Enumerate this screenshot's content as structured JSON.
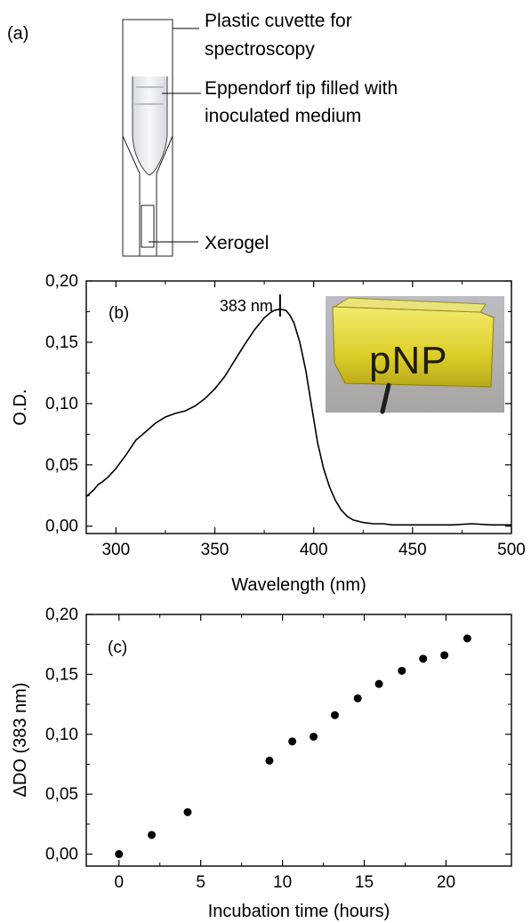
{
  "panel_a": {
    "label": "(a)",
    "callouts": {
      "cuvette_line1": "Plastic cuvette for",
      "cuvette_line2": "spectroscopy",
      "tip_line1": "Eppendorf tip filled with",
      "tip_line2": "inoculated medium",
      "xerogel": "Xerogel"
    }
  },
  "chart_data": [
    {
      "type": "line",
      "panel_label": "(b)",
      "xlabel": "Wavelength (nm)",
      "ylabel": "O.D.",
      "xlim": [
        285,
        500
      ],
      "ylim": [
        -0.006,
        0.2
      ],
      "x_ticks": [
        300,
        350,
        400,
        450,
        500
      ],
      "x_tick_labels": [
        "300",
        "350",
        "400",
        "450",
        "500"
      ],
      "y_ticks": [
        0,
        0.05,
        0.1,
        0.15,
        0.2
      ],
      "y_tick_labels": [
        "0,00",
        "0,05",
        "0,10",
        "0,15",
        "0,20"
      ],
      "annotation": {
        "text": "383 nm",
        "x": 383
      },
      "inset_photo_text": "pNP",
      "series": [
        {
          "x": [
            285,
            287,
            289,
            291,
            293,
            296,
            300,
            305,
            310,
            315,
            320,
            325,
            330,
            335,
            340,
            345,
            350,
            355,
            360,
            365,
            370,
            375,
            378,
            380,
            383,
            386,
            388,
            390,
            393,
            396,
            399,
            402,
            405,
            408,
            411,
            414,
            417,
            420,
            425,
            430,
            435,
            440,
            450,
            460,
            470,
            480,
            490,
            500
          ],
          "y": [
            0.024,
            0.027,
            0.03,
            0.034,
            0.036,
            0.04,
            0.047,
            0.058,
            0.07,
            0.077,
            0.084,
            0.089,
            0.092,
            0.094,
            0.098,
            0.104,
            0.112,
            0.122,
            0.135,
            0.148,
            0.16,
            0.17,
            0.174,
            0.176,
            0.177,
            0.176,
            0.172,
            0.166,
            0.15,
            0.127,
            0.097,
            0.068,
            0.047,
            0.032,
            0.021,
            0.013,
            0.008,
            0.005,
            0.003,
            0.002,
            0.002,
            0.001,
            0.001,
            0.001,
            0.001,
            0.002,
            0.001,
            0.001
          ]
        }
      ]
    },
    {
      "type": "scatter",
      "panel_label": "(c)",
      "xlabel": "Incubation time (hours)",
      "ylabel": "ΔDO (383 nm)",
      "xlim": [
        -2,
        24
      ],
      "ylim": [
        -0.01,
        0.2
      ],
      "x_ticks": [
        0,
        5,
        10,
        15,
        20
      ],
      "x_tick_labels": [
        "0",
        "5",
        "10",
        "15",
        "20"
      ],
      "y_ticks": [
        0,
        0.05,
        0.1,
        0.15,
        0.2
      ],
      "y_tick_labels": [
        "0,00",
        "0,05",
        "0,10",
        "0,15",
        "0,20"
      ],
      "series": [
        {
          "x": [
            0,
            2,
            4.2,
            9.2,
            10.6,
            11.9,
            13.2,
            14.6,
            15.9,
            17.3,
            18.6,
            19.9,
            21.3
          ],
          "y": [
            0.0,
            0.016,
            0.035,
            0.078,
            0.094,
            0.098,
            0.116,
            0.13,
            0.142,
            0.153,
            0.163,
            0.166,
            0.18
          ]
        }
      ]
    }
  ]
}
